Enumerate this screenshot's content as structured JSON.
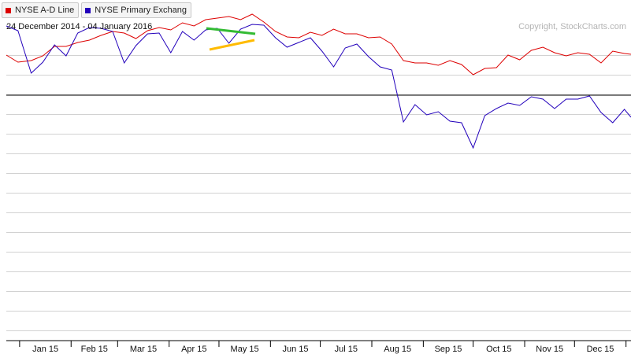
{
  "legend": [
    {
      "label": "NYSE A-D Line",
      "color": "#dd0000"
    },
    {
      "label": "NYSE Primary Exchang",
      "color": "#2200bb"
    }
  ],
  "date_range": "24 December 2014 - 04 January 2016",
  "copyright": "Copyright, StockCharts.com",
  "chart_data": {
    "type": "line",
    "x_ticks": [
      "Jan 15",
      "Feb 15",
      "Mar 15",
      "Apr 15",
      "May 15",
      "Jun 15",
      "Jul 15",
      "Aug 15",
      "Sep 15",
      "Oct 15",
      "Nov 15",
      "Dec 15"
    ],
    "grid": true,
    "y_scale_labels_shown": false,
    "series": [
      {
        "name": "NYSE A-D Line",
        "color": "#dd0000",
        "x": [
          "2014-12-24",
          "2014-12-31",
          "2015-01-08",
          "2015-01-15",
          "2015-01-22",
          "2015-01-29",
          "2015-02-05",
          "2015-02-12",
          "2015-02-19",
          "2015-02-26",
          "2015-03-05",
          "2015-03-12",
          "2015-03-19",
          "2015-03-26",
          "2015-04-02",
          "2015-04-09",
          "2015-04-16",
          "2015-04-23",
          "2015-04-30",
          "2015-05-07",
          "2015-05-14",
          "2015-05-21",
          "2015-05-28",
          "2015-06-04",
          "2015-06-11",
          "2015-06-18",
          "2015-06-25",
          "2015-07-02",
          "2015-07-09",
          "2015-07-16",
          "2015-07-23",
          "2015-07-30",
          "2015-08-06",
          "2015-08-13",
          "2015-08-20",
          "2015-08-27",
          "2015-09-03",
          "2015-09-10",
          "2015-09-17",
          "2015-09-24",
          "2015-10-01",
          "2015-10-08",
          "2015-10-15",
          "2015-10-22",
          "2015-10-29",
          "2015-11-05",
          "2015-11-12",
          "2015-11-19",
          "2015-11-26",
          "2015-12-03",
          "2015-12-10",
          "2015-12-17",
          "2015-12-24",
          "2015-12-31",
          "2016-01-04"
        ],
        "y": [
          51,
          42,
          44,
          50,
          62,
          62,
          67,
          70,
          76,
          81,
          79,
          72,
          82,
          86,
          83,
          92,
          88,
          96,
          98,
          100,
          96,
          103,
          93,
          81,
          74,
          73,
          80,
          76,
          84,
          78,
          78,
          73,
          74,
          65,
          44,
          41,
          41,
          38,
          44,
          39,
          26,
          34,
          35,
          51,
          45,
          57,
          61,
          54,
          50,
          54,
          52,
          41,
          56,
          53,
          52
        ]
      },
      {
        "name": "NYSE Primary Exchang",
        "color": "#2200bb",
        "x": [
          "2014-12-24",
          "2014-12-31",
          "2015-01-08",
          "2015-01-15",
          "2015-01-22",
          "2015-01-29",
          "2015-02-05",
          "2015-02-12",
          "2015-02-19",
          "2015-02-26",
          "2015-03-05",
          "2015-03-12",
          "2015-03-19",
          "2015-03-26",
          "2015-04-02",
          "2015-04-09",
          "2015-04-16",
          "2015-04-23",
          "2015-04-30",
          "2015-05-07",
          "2015-05-14",
          "2015-05-21",
          "2015-05-28",
          "2015-06-04",
          "2015-06-11",
          "2015-06-18",
          "2015-06-25",
          "2015-07-02",
          "2015-07-09",
          "2015-07-16",
          "2015-07-23",
          "2015-07-30",
          "2015-08-06",
          "2015-08-13",
          "2015-08-20",
          "2015-08-27",
          "2015-09-03",
          "2015-09-10",
          "2015-09-17",
          "2015-09-24",
          "2015-10-01",
          "2015-10-08",
          "2015-10-15",
          "2015-10-22",
          "2015-10-29",
          "2015-11-05",
          "2015-11-12",
          "2015-11-19",
          "2015-11-26",
          "2015-12-03",
          "2015-12-10",
          "2015-12-17",
          "2015-12-24",
          "2015-12-31",
          "2016-01-04"
        ],
        "y": [
          88,
          82,
          28,
          42,
          64,
          50,
          79,
          86,
          85,
          81,
          41,
          63,
          78,
          79,
          54,
          81,
          70,
          83,
          85,
          66,
          84,
          90,
          89,
          73,
          61,
          67,
          73,
          56,
          36,
          60,
          65,
          49,
          36,
          32,
          -34,
          -12,
          -25,
          -21,
          -33,
          -35,
          -67,
          -26,
          -17,
          -10,
          -13,
          -2,
          -5,
          -17,
          -5,
          -5,
          -1,
          -22,
          -35,
          -18,
          -28
        ]
      }
    ],
    "reference_line": 0
  }
}
